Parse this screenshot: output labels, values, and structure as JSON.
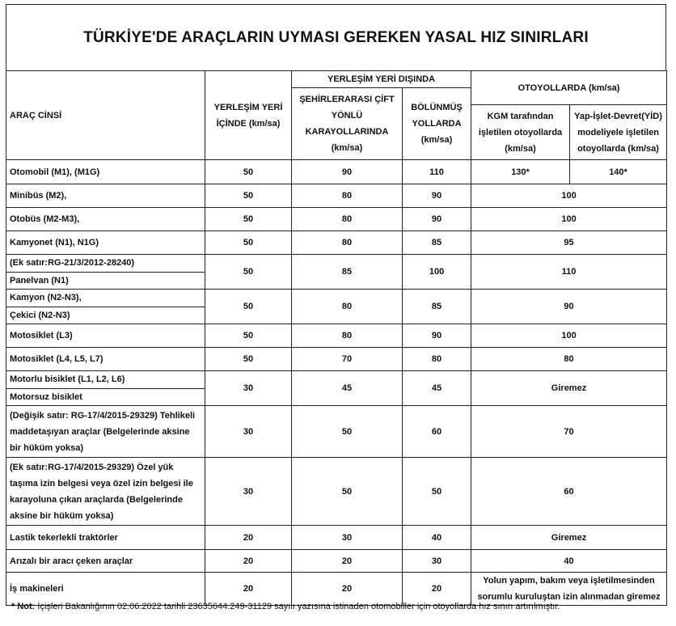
{
  "title": "TÜRKİYE'DE ARAÇLARIN UYMASI GEREKEN YASAL HIZ SINIRLARI",
  "headers": {
    "vehicle": "ARAÇ CİNSİ",
    "inside_city": "YERLEŞİM YERİ İÇİNDE (km/sa)",
    "outside_city": "YERLEŞİM YERİ DIŞINDA",
    "intercity": "ŞEHİRLERARASI ÇİFT YÖNLÜ KARAYOLLARINDA (km/sa)",
    "divided": "BÖLÜNMÜŞ YOLLARDA (km/sa)",
    "motorways": "OTOYOLLARDA (km/sa)",
    "kgm": "KGM tarafından işletilen otoyollarda (km/sa)",
    "yid": "Yap-İşlet-Devret(YİD) modeliyele işletilen otoyollarda (km/sa)"
  },
  "rows": [
    {
      "vehicle": "Otomobil (M1), (M1G)",
      "inside": "50",
      "intercity": "90",
      "divided": "110",
      "kgm": "130*",
      "yid": "140*"
    },
    {
      "vehicle": "Minibüs (M2),",
      "inside": "50",
      "intercity": "80",
      "divided": "90",
      "motorway": "100"
    },
    {
      "vehicle": "Otobüs (M2-M3),",
      "inside": "50",
      "intercity": "80",
      "divided": "90",
      "motorway": "100"
    },
    {
      "vehicle": "Kamyonet (N1), N1G)",
      "inside": "50",
      "intercity": "80",
      "divided": "85",
      "motorway": "95"
    },
    {
      "vehicle_a": "(Ek satır:RG-21/3/2012-28240)",
      "vehicle_b": "Panelvan (N1)",
      "inside": "50",
      "intercity": "85",
      "divided": "100",
      "motorway": "110"
    },
    {
      "vehicle_a": "Kamyon (N2-N3),",
      "vehicle_b": "Çekici (N2-N3)",
      "inside": "50",
      "intercity": "80",
      "divided": "85",
      "motorway": "90"
    },
    {
      "vehicle": "Motosiklet (L3)",
      "inside": "50",
      "intercity": "80",
      "divided": "90",
      "motorway": "100"
    },
    {
      "vehicle": "Motosiklet (L4, L5, L7)",
      "inside": "50",
      "intercity": "70",
      "divided": "80",
      "motorway": "80"
    },
    {
      "vehicle_a": "Motorlu bisiklet (L1, L2, L6)",
      "vehicle_b": "Motorsuz bisiklet",
      "inside": "30",
      "intercity": "45",
      "divided": "45",
      "motorway": "Giremez"
    },
    {
      "vehicle": "(Değişik satır: RG-17/4/2015-29329) Tehlikeli maddetaşıyan araçlar (Belgelerinde  aksine bir hüküm yoksa)",
      "inside": "30",
      "intercity": "50",
      "divided": "60",
      "motorway": "70"
    },
    {
      "vehicle": "(Ek satır:RG-17/4/2015-29329) Özel yük taşıma izin   belgesi veya özel izin belgesi  ile karayoluna çıkan araçlarda (Belgelerinde aksine bir hüküm yoksa)",
      "inside": "30",
      "intercity": "50",
      "divided": "50",
      "motorway": "60"
    },
    {
      "vehicle": "Lastik tekerlekli traktörler",
      "inside": "20",
      "intercity": "30",
      "divided": "40",
      "motorway": "Giremez"
    },
    {
      "vehicle": "Arızalı bir aracı çeken araçlar",
      "inside": "20",
      "intercity": "20",
      "divided": "30",
      "motorway": "40"
    },
    {
      "vehicle": "İş makineleri",
      "inside": "20",
      "intercity": "20",
      "divided": "20",
      "motorway": "Yolun yapım, bakım veya işletilmesinden sorumlu kuruluştan izin alınmadan giremez"
    }
  ],
  "note": {
    "label": "* Not:",
    "text": " İçişleri Bakanlığının 02.06.2022 tarihli 23635644.249-31129 sayılı yazısına istinaden otomobiller için otoyollarda hız sınırı artırılmıştır."
  }
}
